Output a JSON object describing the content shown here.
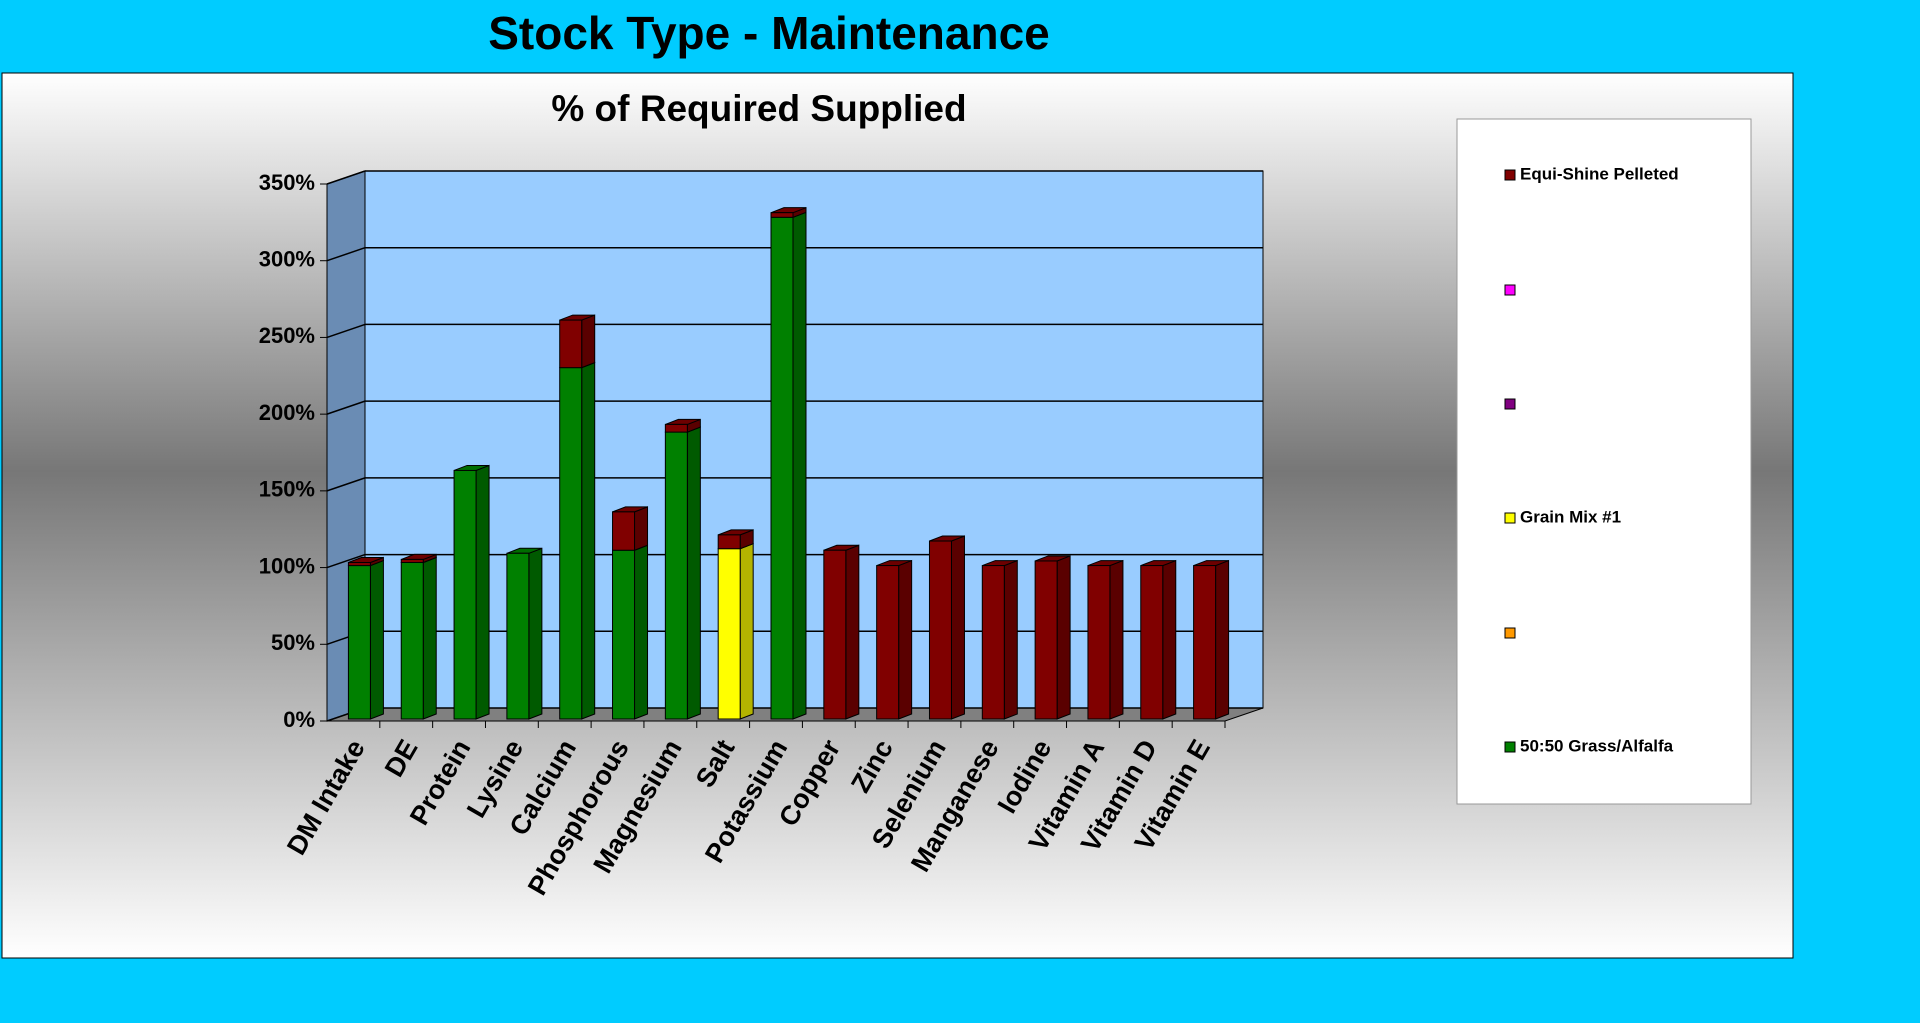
{
  "header": {
    "title": "Stock Type - Maintenance"
  },
  "chart_data": {
    "type": "bar3d_stacked",
    "title": "% of Required Supplied",
    "categories": [
      "DM Intake",
      "DE",
      "Protein",
      "Lysine",
      "Calcium",
      "Phosphorous",
      "Magnesium",
      "Salt",
      "Potassium",
      "Copper",
      "Zinc",
      "Selenium",
      "Manganese",
      "Iodine",
      "Vitamin A",
      "Vitamin D",
      "Vitamin E"
    ],
    "series": [
      {
        "name": "50:50 Grass/Alfalfa",
        "color": "#008000",
        "values": [
          100,
          102,
          162,
          108,
          229,
          110,
          187,
          null,
          327,
          null,
          null,
          null,
          null,
          null,
          null,
          null,
          null
        ]
      },
      {
        "name": "Grain Mix #1",
        "color": "#ffff00",
        "values": [
          null,
          null,
          null,
          null,
          null,
          null,
          null,
          111,
          null,
          null,
          null,
          null,
          null,
          null,
          null,
          null,
          null
        ]
      },
      {
        "name": "Equi-Shine Pelleted",
        "color": "#800000",
        "values": [
          2,
          2,
          null,
          null,
          31,
          25,
          5,
          9,
          3,
          110,
          100,
          116,
          100,
          103,
          100,
          100,
          100
        ]
      }
    ],
    "ylim": [
      0,
      350
    ],
    "yticks": [
      {
        "value": 0,
        "label": "0%"
      },
      {
        "value": 50,
        "label": "50%"
      },
      {
        "value": 100,
        "label": "100%"
      },
      {
        "value": 150,
        "label": "150%"
      },
      {
        "value": 200,
        "label": "200%"
      },
      {
        "value": 250,
        "label": "250%"
      },
      {
        "value": 300,
        "label": "300%"
      },
      {
        "value": 350,
        "label": "350%"
      }
    ],
    "grid": true,
    "legend": "right"
  }
}
